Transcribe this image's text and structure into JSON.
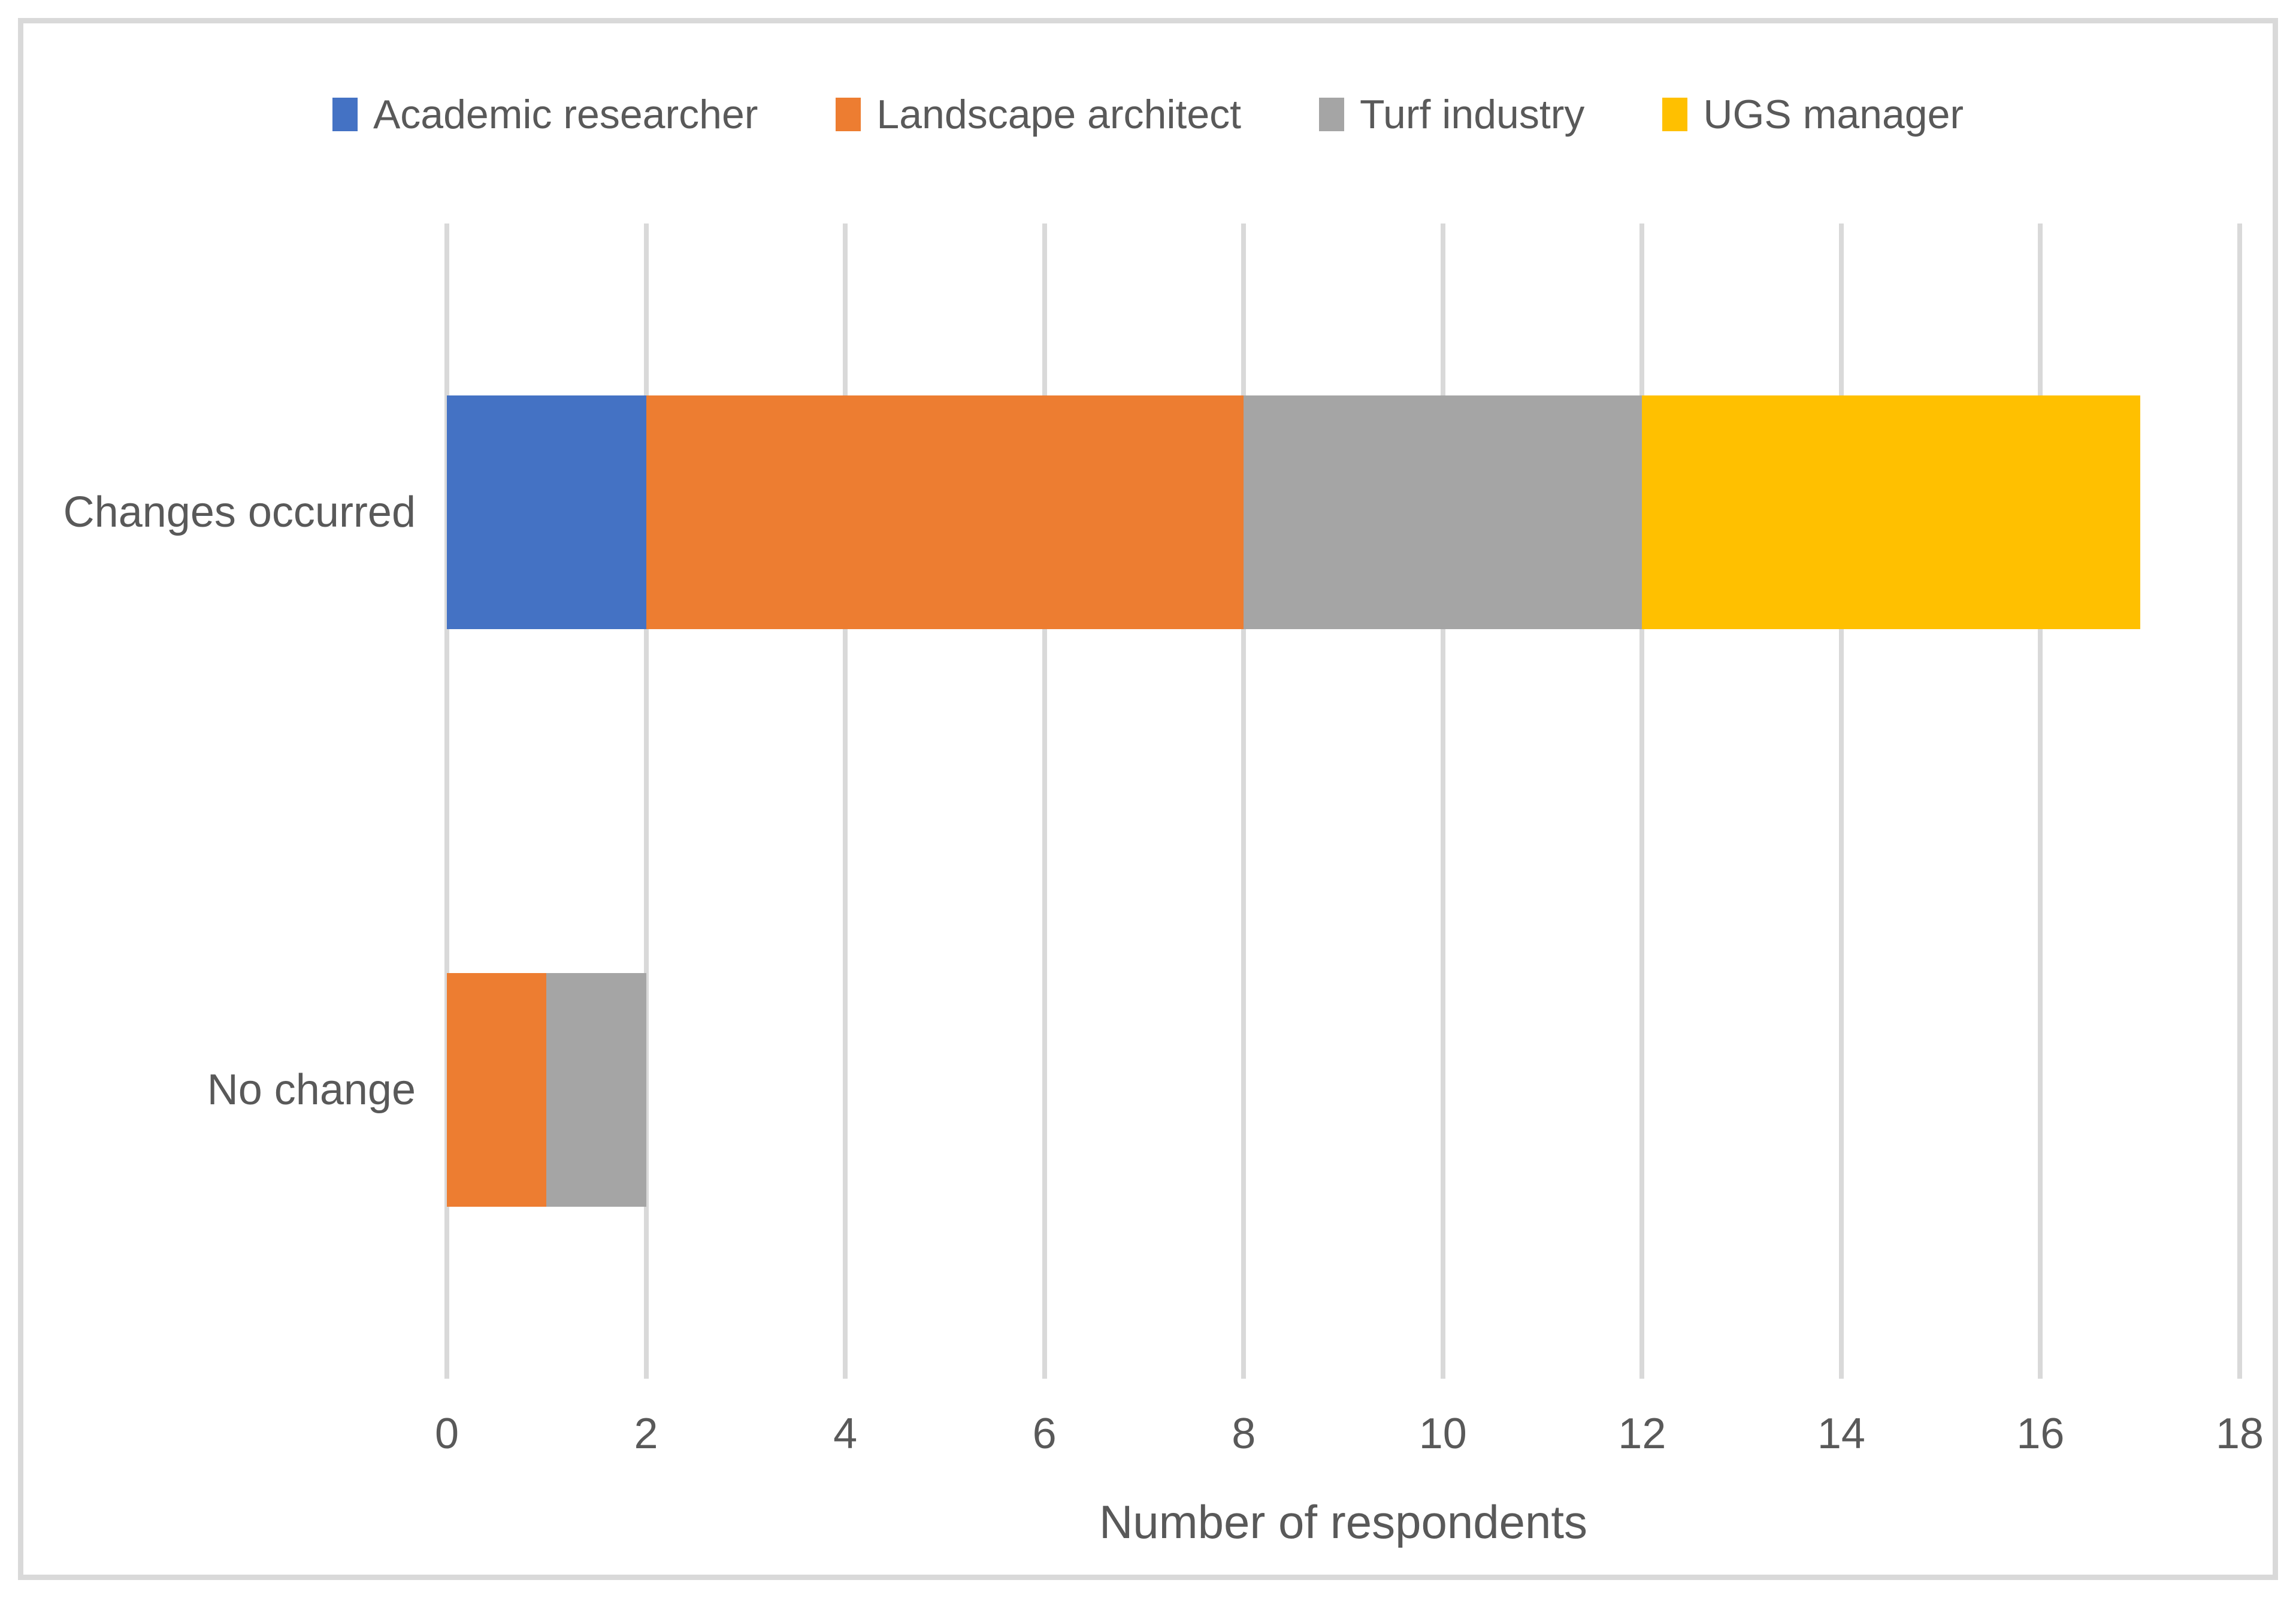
{
  "colors": {
    "background": "#ffffff",
    "frame_border": "#d9d9d9",
    "gridline": "#d9d9d9",
    "text": "#595959"
  },
  "chart_data": {
    "type": "bar",
    "orientation": "horizontal",
    "stacked": true,
    "title": "",
    "xlabel": "Number of respondents",
    "ylabel": "",
    "categories": [
      "Changes occurred",
      "No change"
    ],
    "series": [
      {
        "name": "Academic researcher",
        "color": "#4472c4",
        "values": [
          2,
          0
        ]
      },
      {
        "name": "Landscape architect",
        "color": "#ed7d31",
        "values": [
          6,
          1
        ]
      },
      {
        "name": "Turf industry",
        "color": "#a5a5a5",
        "values": [
          4,
          1
        ]
      },
      {
        "name": "UGS manager",
        "color": "#ffc000",
        "values": [
          5,
          0
        ]
      }
    ],
    "totals": [
      17,
      2
    ],
    "xlim": [
      0,
      18
    ],
    "xticks": [
      0,
      2,
      4,
      6,
      8,
      10,
      12,
      14,
      16,
      18
    ],
    "grid": "vertical-gridlines-on",
    "legend_position": "top"
  }
}
